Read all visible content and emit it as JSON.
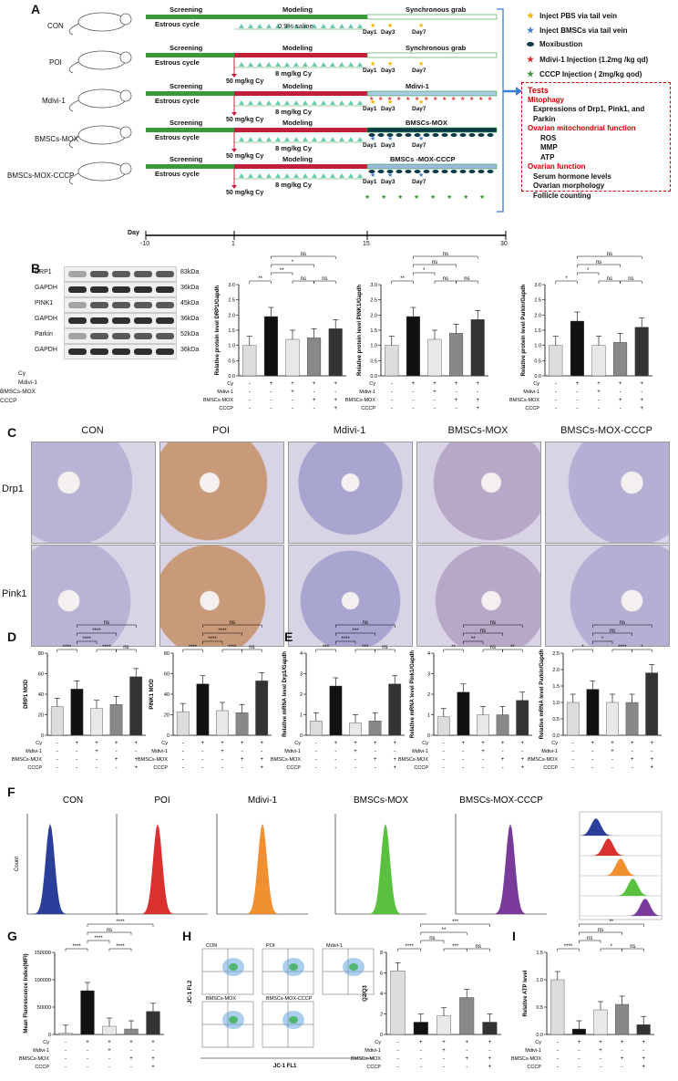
{
  "panels": {
    "A": "A",
    "B": "B",
    "C": "C",
    "D": "D",
    "E": "E",
    "F": "F",
    "G": "G",
    "H": "H",
    "I": "I"
  },
  "panelA": {
    "groups": [
      "CON",
      "POI",
      "Mdivi-1",
      "BMSCs-MOX",
      "BMSCs-MOX-CCCP"
    ],
    "screening": "Screening",
    "estrous": "Estrous cycle",
    "modeling": "Modeling",
    "saline": "0.9% saline",
    "cy_dose": "8 mg/kg Cy",
    "cy_50": "50 mg/kg Cy",
    "phase_labels": [
      "Synchronous grab",
      "Synchronous grab",
      "Mdivi-1",
      "BMSCs-MOX",
      "BMSCs -MOX-CCCP"
    ],
    "days": [
      "Day1",
      "Day3",
      "Day7"
    ],
    "timeline_label": "Day",
    "timeline_ticks": [
      "-10",
      "1",
      "15",
      "30"
    ],
    "legend": [
      {
        "label": "Inject PBS via tail vein",
        "icon": "star-yellow-icon",
        "color": "#f5b400"
      },
      {
        "label": "Inject BMSCs via tail vein",
        "icon": "star-blue-icon",
        "color": "#3a7fd0"
      },
      {
        "label": "Moxibustion",
        "icon": "ellipse-dark-icon",
        "color": "#0b3a4a"
      },
      {
        "label": "Mdivi-1 Injection (1.2mg /kg qd)",
        "icon": "star-red-icon",
        "color": "#e03030"
      },
      {
        "label": "CCCP Injection ( 2mg/kg qod)",
        "icon": "star-green-icon",
        "color": "#3a9a3a"
      }
    ],
    "tests": {
      "title": "Tests",
      "mitophagy": "Mitophagy",
      "mito_text": "Expressions of Drp1, Pink1, and Parkin",
      "ovarian_mito": "Ovarian mitochondrial function",
      "ros": "ROS",
      "mmp": "MMP",
      "atp": "ATP",
      "ovarian_func": "Ovarian function",
      "serum": "Serum hormone levels",
      "morph": "Ovarian morphology",
      "follicle": "Follicle counting"
    }
  },
  "panelB": {
    "blots": [
      {
        "label": "DRP1",
        "kda": "83kDa"
      },
      {
        "label": "GAPDH",
        "kda": "36kDa"
      },
      {
        "label": "PINK1",
        "kda": "45kDa"
      },
      {
        "label": "GAPDH",
        "kda": "36kDa"
      },
      {
        "label": "Parkin",
        "kda": "52kDa"
      },
      {
        "label": "GAPDH",
        "kda": "36kDa"
      }
    ],
    "row_labels": [
      "Cy",
      "Mdivi-1",
      "BMSCs-MOX",
      "CCCP"
    ],
    "signs": [
      [
        "-",
        "+",
        "+",
        "+",
        "+"
      ],
      [
        "-",
        "-",
        "+",
        "-",
        "-"
      ],
      [
        "-",
        "-",
        "-",
        "+",
        "+"
      ],
      [
        "-",
        "-",
        "-",
        "-",
        "+"
      ]
    ]
  },
  "chart_data": [
    {
      "type": "bar",
      "panel": "B",
      "ylabel": "Relative protein level DRP1/Gapdh",
      "categories": [
        "CON",
        "POI",
        "Mdivi-1",
        "BMSCs-MOX",
        "BMSCs-MOX-CCCP"
      ],
      "values": [
        1.0,
        1.95,
        1.2,
        1.25,
        1.55
      ],
      "ylim": [
        0,
        3.0
      ],
      "yticks": [
        "0.0",
        "0.5",
        "1.0",
        "1.5",
        "2.0",
        "2.5",
        "3.0"
      ],
      "sig": [
        "**",
        "**",
        "*",
        "ns",
        "ns",
        "ns"
      ]
    },
    {
      "type": "bar",
      "panel": "B",
      "ylabel": "Relative protein level PINK1/Gapdh",
      "categories": [
        "CON",
        "POI",
        "Mdivi-1",
        "BMSCs-MOX",
        "BMSCs-MOX-CCCP"
      ],
      "values": [
        1.0,
        1.95,
        1.2,
        1.4,
        1.85
      ],
      "ylim": [
        0,
        3.0
      ],
      "yticks": [
        "0.0",
        "0.5",
        "1.0",
        "1.5",
        "2.0",
        "2.5",
        "3.0"
      ],
      "sig": [
        "**",
        "*",
        "ns",
        "ns",
        "ns",
        "ns"
      ]
    },
    {
      "type": "bar",
      "panel": "B",
      "ylabel": "Relative protein level Parkin/Gapdh",
      "categories": [
        "CON",
        "POI",
        "Mdivi-1",
        "BMSCs-MOX",
        "BMSCs-MOX-CCCP"
      ],
      "values": [
        1.0,
        1.8,
        1.0,
        1.1,
        1.6
      ],
      "ylim": [
        0,
        3.0
      ],
      "yticks": [
        "0.0",
        "0.5",
        "1.0",
        "1.5",
        "2.0",
        "2.5",
        "3.0"
      ],
      "sig": [
        "*",
        "*",
        "ns",
        "ns",
        "ns",
        "ns"
      ]
    },
    {
      "type": "bar",
      "panel": "D",
      "ylabel": "DRP1 MOD",
      "categories": [
        "CON",
        "POI",
        "Mdivi-1",
        "BMSCs-MOX",
        "BMSCs-MOX-CCCP"
      ],
      "values": [
        28,
        45,
        26,
        30,
        57
      ],
      "ylim": [
        0,
        80
      ],
      "yticks": [
        "0",
        "20",
        "40",
        "60",
        "80"
      ],
      "sig": [
        "****",
        "****",
        "****",
        "ns",
        "****",
        "ns"
      ]
    },
    {
      "type": "bar",
      "panel": "D",
      "ylabel": "PINK1 MOD",
      "categories": [
        "CON",
        "POI",
        "Mdivi-1",
        "BMSCs-MOX",
        "BMSCs-MOX-CCCP"
      ],
      "values": [
        23,
        50,
        24,
        22,
        53
      ],
      "ylim": [
        0,
        80
      ],
      "yticks": [
        "0",
        "20",
        "40",
        "60",
        "80"
      ],
      "sig": [
        "****",
        "****",
        "****",
        "ns",
        "****",
        "ns"
      ]
    },
    {
      "type": "bar",
      "panel": "E",
      "ylabel": "Relative mRNA level Drp1/Gapdh",
      "categories": [
        "CON",
        "POI",
        "Mdivi-1",
        "BMSCs-MOX",
        "BMSCs-MOX-CCCP"
      ],
      "values": [
        0.7,
        2.4,
        0.6,
        0.7,
        2.5
      ],
      "ylim": [
        0,
        4
      ],
      "yticks": [
        "0",
        "1",
        "2",
        "3",
        "4"
      ],
      "sig": [
        "***",
        "****",
        "***",
        "ns",
        "***",
        "ns"
      ]
    },
    {
      "type": "bar",
      "panel": "E",
      "ylabel": "Relative mRNA level Pink1/Gapdh",
      "categories": [
        "CON",
        "POI",
        "Mdivi-1",
        "BMSCs-MOX",
        "BMSCs-MOX-CCCP"
      ],
      "values": [
        0.9,
        2.1,
        1.0,
        1.0,
        1.7
      ],
      "ylim": [
        0,
        4
      ],
      "yticks": [
        "0",
        "1",
        "2",
        "3",
        "4"
      ],
      "sig": [
        "**",
        "**",
        "ns",
        "ns",
        "ns",
        "**"
      ]
    },
    {
      "type": "bar",
      "panel": "E",
      "ylabel": "Relative mRNA level Parkin/Gapdh",
      "categories": [
        "CON",
        "POI",
        "Mdivi-1",
        "BMSCs-MOX",
        "BMSCs-MOX-CCCP"
      ],
      "values": [
        1.0,
        1.4,
        1.0,
        1.0,
        1.9
      ],
      "ylim": [
        0,
        2.5
      ],
      "yticks": [
        "0.0",
        "0.5",
        "1.0",
        "1.5",
        "2.0",
        "2.5"
      ],
      "sig": [
        "*",
        "*",
        "ns",
        "ns",
        "****",
        "*"
      ]
    },
    {
      "type": "bar",
      "panel": "G",
      "ylabel": "Mean Fluorescence Index(MFI)",
      "categories": [
        "CON",
        "POI",
        "Mdivi-1",
        "BMSCs-MOX",
        "BMSCs-MOX-CCCP"
      ],
      "values": [
        2000,
        80000,
        15000,
        10000,
        42000
      ],
      "ylim": [
        0,
        150000
      ],
      "yticks": [
        "0",
        "50000",
        "100000",
        "150000"
      ],
      "sig": [
        "****",
        "****",
        "ns",
        "****",
        "****"
      ]
    },
    {
      "type": "bar",
      "panel": "H",
      "ylabel": "Q2/Q3",
      "categories": [
        "CON",
        "POI",
        "Mdivi-1",
        "BMSCs-MOX",
        "BMSCs-MOX-CCCP"
      ],
      "values": [
        6.2,
        1.2,
        1.8,
        3.6,
        1.2
      ],
      "ylim": [
        0,
        8
      ],
      "yticks": [
        "0",
        "2",
        "4",
        "6",
        "8"
      ],
      "sig": [
        "****",
        "ns",
        "**",
        "***",
        "***",
        "ns"
      ]
    },
    {
      "type": "bar",
      "panel": "I",
      "ylabel": "Relative ATP level",
      "categories": [
        "CON",
        "POI",
        "Mdivi-1",
        "BMSCs-MOX",
        "BMSCs-MOX-CCCP"
      ],
      "values": [
        1.0,
        0.1,
        0.45,
        0.55,
        0.18
      ],
      "ylim": [
        0,
        1.5
      ],
      "yticks": [
        "0.0",
        "0.5",
        "1.0",
        "1.5"
      ],
      "sig": [
        "****",
        "ns",
        "ns",
        "**",
        "*",
        "ns"
      ]
    }
  ],
  "panelC": {
    "titles": [
      "CON",
      "POI",
      "Mdivi-1",
      "BMSCs-MOX",
      "BMSCs-MOX-CCCP"
    ],
    "rows": [
      "Drp1",
      "Pink1"
    ]
  },
  "panelF": {
    "titles": [
      "CON",
      "POI",
      "Mdivi-1",
      "BMSCs-MOX",
      "BMSCs-MOX-CCCP"
    ],
    "ylabel": "Count",
    "colors": [
      "#2b3f9a",
      "#d93030",
      "#f09030",
      "#5ac040",
      "#7a3a9a"
    ]
  },
  "panelH": {
    "flow_titles": [
      "CON",
      "POI",
      "Mdivi-1",
      "BMSCs-MOX",
      "BMSCs-MOX-CCCP"
    ],
    "xaxis": "JC-1 FL1",
    "yaxis": "JC-1 FL2"
  }
}
